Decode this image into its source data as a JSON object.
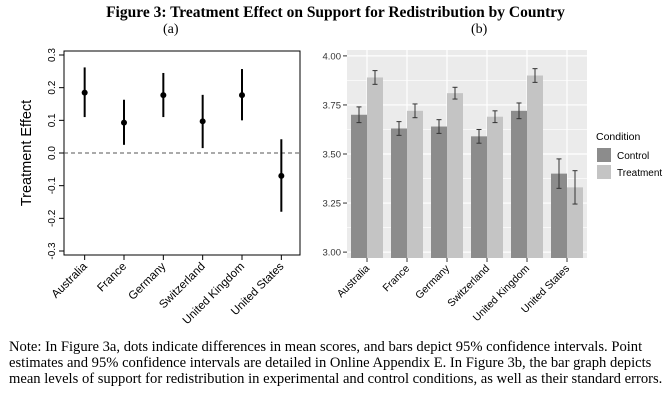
{
  "figure_title": "Figure 3: Treatment Effect on Support for Redistribution by Country",
  "panel_labels": [
    "(a)",
    "(b)"
  ],
  "note": "Note: In Figure 3a, dots indicate differences in mean scores, and bars depict 95% confidence intervals. Point estimates and 95% confidence intervals are detailed in Online Appendix E. In Figure 3b, the bar graph depicts mean levels of support for redistribution in experimental and control conditions, as well as their standard errors.",
  "colors": {
    "control": "#8c8c8c",
    "treatment": "#c4c4c4",
    "panel_bg": "#ebebeb",
    "grid": "#ffffff"
  },
  "chart_data": [
    {
      "type": "scatter",
      "panel": "(a)",
      "ylabel": "Treatment Effect",
      "ylim": [
        -0.3,
        0.3
      ],
      "yticks": [
        "-0.3",
        "-0.2",
        "-0.1",
        "0.0",
        "0.1",
        "0.2",
        "0.3"
      ],
      "categories": [
        "Australia",
        "France",
        "Germany",
        "Switzerland",
        "United Kingdom",
        "United States"
      ],
      "values": [
        0.185,
        0.093,
        0.177,
        0.097,
        0.177,
        -0.07
      ],
      "ci_low": [
        0.11,
        0.025,
        0.11,
        0.015,
        0.1,
        -0.18
      ],
      "ci_high": [
        0.262,
        0.163,
        0.245,
        0.178,
        0.257,
        0.042
      ],
      "reference_line": 0.0
    },
    {
      "type": "bar",
      "panel": "(b)",
      "ylim": [
        2.97,
        4.03
      ],
      "yticks": [
        "3.00",
        "3.25",
        "3.50",
        "3.75",
        "4.00"
      ],
      "categories": [
        "Australia",
        "France",
        "Germany",
        "Switzerland",
        "United Kingdom",
        "United States"
      ],
      "legend_title": "Condition",
      "legend_position": "right",
      "grid": true,
      "series": [
        {
          "name": "Control",
          "values": [
            3.7,
            3.63,
            3.64,
            3.59,
            3.72,
            3.4
          ],
          "se": [
            0.04,
            0.035,
            0.035,
            0.035,
            0.04,
            0.075
          ]
        },
        {
          "name": "Treatment",
          "values": [
            3.89,
            3.72,
            3.81,
            3.69,
            3.9,
            3.33
          ],
          "se": [
            0.035,
            0.035,
            0.03,
            0.03,
            0.035,
            0.085
          ]
        }
      ]
    }
  ]
}
